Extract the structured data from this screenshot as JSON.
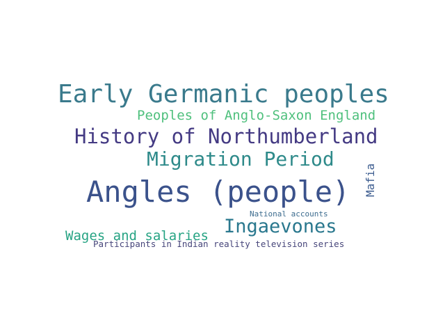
{
  "words": [
    {
      "text": "Early Germanic peoples",
      "color": "#3a7a8c"
    },
    {
      "text": "Peoples of Anglo-Saxon England",
      "color": "#4fc07d"
    },
    {
      "text": "History of Northumberland",
      "color": "#443a83"
    },
    {
      "text": "Migration Period",
      "color": "#2e8a8a"
    },
    {
      "text": "Angles (people)",
      "color": "#3b528b"
    },
    {
      "text": "Mafia",
      "color": "#3b5b8e"
    },
    {
      "text": "National accounts",
      "color": "#3b6b8e"
    },
    {
      "text": "Ingaevones",
      "color": "#2a788e"
    },
    {
      "text": "Wages and salaries",
      "color": "#26a383"
    },
    {
      "text": "Participants in Indian reality television series",
      "color": "#46457a"
    }
  ]
}
